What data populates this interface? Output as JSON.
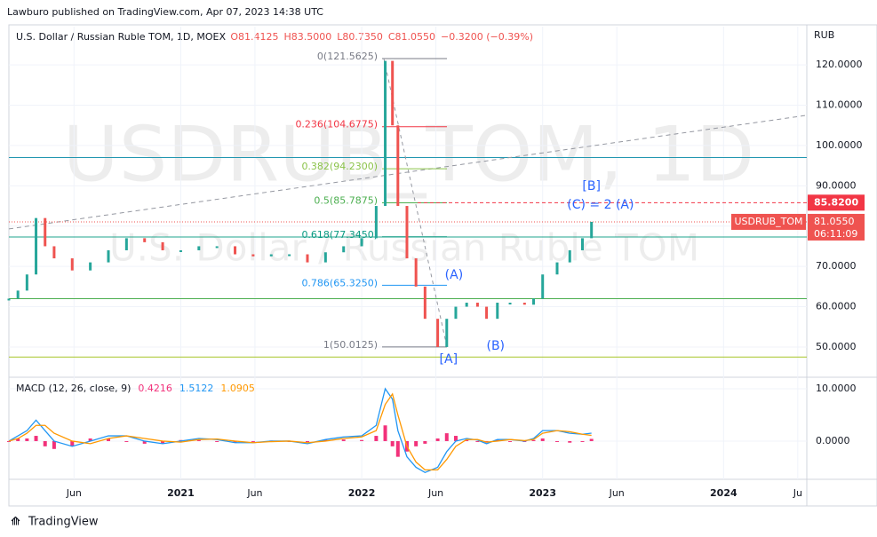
{
  "header": "Lawburo published on TradingView.com, Apr 07, 2023 14:38 UTC",
  "footer": "TradingView",
  "chart_data": [
    {
      "type": "price",
      "title": "U.S. Dollar / Russian Ruble TOM, 1D, MOEX",
      "ohlc": [
        "O81.4125",
        "H83.5000",
        "L80.7350",
        "C81.0550",
        "−0.3200 (−0.39%)"
      ],
      "watermark": [
        "USDRUB_TOM, 1D",
        "U.S. Dollar / Russian Ruble TOM"
      ],
      "axis_label": "RUB",
      "up_color": "#26a69a",
      "down_color": "#ef5350",
      "x": [
        2020.05,
        2020.1,
        2020.15,
        2020.2,
        2020.25,
        2020.3,
        2020.4,
        2020.5,
        2020.6,
        2020.7,
        2020.8,
        2020.9,
        2021.0,
        2021.1,
        2021.2,
        2021.3,
        2021.4,
        2021.5,
        2021.6,
        2021.7,
        2021.8,
        2021.9,
        2022.0,
        2022.08,
        2022.13,
        2022.17,
        2022.2,
        2022.25,
        2022.3,
        2022.35,
        2022.42,
        2022.47,
        2022.52,
        2022.58,
        2022.64,
        2022.69,
        2022.75,
        2022.82,
        2022.9,
        2022.95,
        2023.0,
        2023.08,
        2023.15,
        2023.22,
        2023.27
      ],
      "values": [
        62,
        64,
        68,
        82,
        75,
        72,
        69,
        71,
        74,
        77,
        76,
        74,
        74,
        75,
        75,
        73,
        72.5,
        73,
        73,
        71,
        73.5,
        75,
        77,
        85,
        121,
        105,
        85,
        72,
        65,
        57,
        50,
        57,
        60,
        61,
        60,
        57,
        61,
        61,
        60.5,
        62,
        68,
        71,
        74,
        77,
        81.055
      ],
      "xlim": [
        2020.05,
        2024.46
      ],
      "xticks": [
        {
          "value": 2020.41,
          "label": "Jun"
        },
        2021,
        {
          "value": 2021.41,
          "label": "Jun"
        },
        2022,
        {
          "value": 2022.41,
          "label": "Jun"
        },
        2023,
        {
          "value": 2023.41,
          "label": "Jun"
        },
        2024,
        {
          "value": 2024.41,
          "label": "Ju"
        }
      ],
      "ylim": [
        42.5,
        129.5
      ],
      "yticks": [
        {
          "value": 50,
          "label": "50.0000"
        },
        {
          "value": 60,
          "label": "60.0000"
        },
        {
          "value": 70,
          "label": "70.0000"
        },
        {
          "value": 80,
          "label": "80.0000"
        },
        {
          "value": 90,
          "label": "90.0000"
        },
        {
          "value": 100,
          "label": "100.0000"
        },
        {
          "value": 110,
          "label": "110.0000"
        },
        {
          "value": 120,
          "label": "120.0000"
        }
      ],
      "fib": [
        {
          "value": 121.5625,
          "label": "0(121.5625)",
          "color": "#787b86"
        },
        {
          "value": 104.6775,
          "label": "0.236(104.6775)",
          "color": "#f23645"
        },
        {
          "value": 94.23,
          "label": "0.382(94.2300)",
          "color": "#8bc34a"
        },
        {
          "value": 85.7875,
          "label": "0.5(85.7875)",
          "color": "#4caf50"
        },
        {
          "value": 77.345,
          "label": "0.618(77.3450)",
          "color": "#089981"
        },
        {
          "value": 65.325,
          "label": "0.786(65.3250)",
          "color": "#2196f3"
        },
        {
          "value": 50.0125,
          "label": "1(50.0125)",
          "color": "#787b86"
        }
      ],
      "levels": [
        {
          "value": 97,
          "color": "#2196b0"
        },
        {
          "value": 77.3,
          "color": "#1fa58c"
        },
        {
          "value": 62,
          "color": "#4caf50"
        },
        {
          "value": 47.5,
          "color": "#a8c52a"
        }
      ],
      "trendline": {
        "x": [
          2020.05,
          2024.46
        ],
        "values": [
          79.3,
          107.5
        ]
      },
      "annotations": [
        {
          "text": "[B]",
          "x": 2023.27,
          "value": 89.8
        },
        {
          "text": "(C) = 2 (A)",
          "x": 2023.32,
          "value": 85.2
        },
        {
          "text": "(A)",
          "x": 2022.51,
          "value": 67.8
        },
        {
          "text": "(B)",
          "x": 2022.74,
          "value": 50.2
        },
        {
          "text": "[A]",
          "x": 2022.48,
          "value": 46.9
        }
      ],
      "price_line": {
        "value": 85.82,
        "label": "85.8200"
      },
      "symbol": "USDRUB_TOM",
      "last_price": {
        "value": 81.055,
        "label": "81.0550"
      },
      "countdown": "06:11:09"
    },
    {
      "type": "macd",
      "title": "MACD (12, 26, close, 9)",
      "ylim": [
        -7.3,
        12.2
      ],
      "yticks": [
        {
          "value": 0,
          "label": "0.0000"
        },
        {
          "value": 10,
          "label": "10.0000"
        }
      ],
      "series": [
        {
          "color": "#f2317a",
          "values": [
            0,
            0.5,
            0.5,
            1,
            -1,
            -1.5,
            -1,
            0.5,
            0.5,
            0,
            -0.5,
            -0.5,
            0.2,
            0.2,
            -0.1,
            -0.3,
            0,
            0.1,
            0,
            -0.2,
            0.3,
            0.3,
            0.2,
            1,
            3,
            -1,
            -3,
            -2,
            -1,
            -0.5,
            0.5,
            1.5,
            1,
            0.2,
            -0.1,
            -0.3,
            0.3,
            0,
            -0.1,
            0.2,
            0.5,
            0,
            -0.3,
            0,
            0.4216
          ]
        },
        {
          "color": "#2196f3",
          "values": [
            0,
            1,
            2,
            4,
            2,
            0,
            -1,
            0,
            1,
            1,
            0,
            -0.5,
            0,
            0.5,
            0.3,
            -0.3,
            -0.3,
            0,
            0,
            -0.5,
            0.3,
            0.8,
            1,
            3,
            10,
            8,
            2,
            -3,
            -5,
            -6,
            -5,
            -2,
            0,
            0.5,
            0.2,
            -0.5,
            0.3,
            0.3,
            0,
            0.5,
            2,
            2,
            1.5,
            1.3,
            1.5122
          ]
        },
        {
          "color": "#ff9800",
          "values": [
            0,
            0.5,
            1.5,
            3,
            3,
            1.5,
            0,
            -0.5,
            0.5,
            1,
            0.5,
            0,
            -0.2,
            0.3,
            0.4,
            0,
            -0.3,
            -0.1,
            0,
            -0.3,
            0,
            0.5,
            0.8,
            2,
            7,
            9,
            5,
            -1,
            -4,
            -5.5,
            -5.5,
            -3.5,
            -1,
            0.3,
            0.3,
            -0.2,
            0,
            0.3,
            0.1,
            0.3,
            1.5,
            2,
            1.8,
            1.3,
            1.0905
          ]
        }
      ]
    }
  ]
}
